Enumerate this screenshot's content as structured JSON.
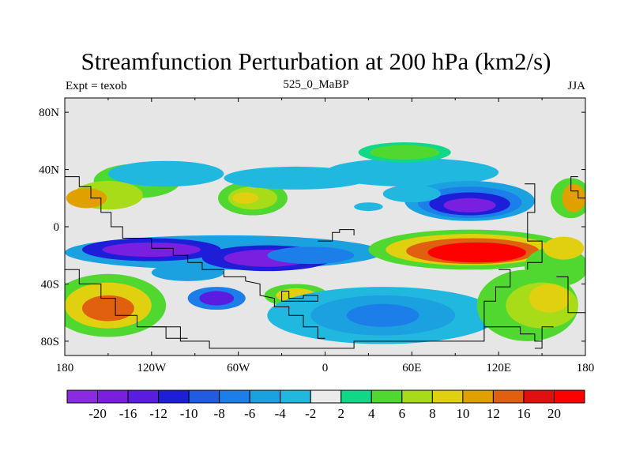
{
  "chart_data": {
    "type": "heatmap",
    "title": "Streamfunction Perturbation at 200 hPa (km2/s)",
    "subtitle_left": "Expt = texob",
    "subtitle_center": "525_0_MaBP",
    "subtitle_right": "JJA",
    "xlabel": "",
    "ylabel": "",
    "xlim": [
      -180,
      180
    ],
    "ylim": [
      -90,
      90
    ],
    "x_ticks": [
      {
        "value": -180,
        "label": "180"
      },
      {
        "value": -120,
        "label": "120W"
      },
      {
        "value": -60,
        "label": "60W"
      },
      {
        "value": 0,
        "label": "0"
      },
      {
        "value": 60,
        "label": "60E"
      },
      {
        "value": 120,
        "label": "120E"
      },
      {
        "value": 180,
        "label": "180"
      }
    ],
    "y_ticks": [
      {
        "value": 80,
        "label": "80N"
      },
      {
        "value": 40,
        "label": "40N"
      },
      {
        "value": 0,
        "label": "0"
      },
      {
        "value": -40,
        "label": "40S"
      },
      {
        "value": -80,
        "label": "80S"
      }
    ],
    "colorbar": {
      "levels": [
        "-20",
        "-16",
        "-12",
        "-10",
        "-8",
        "-6",
        "-4",
        "-2",
        "2",
        "4",
        "6",
        "8",
        "10",
        "12",
        "16",
        "20"
      ],
      "colors": [
        "#8a2be2",
        "#7a1fe0",
        "#5a1ce0",
        "#1e1ed8",
        "#1f5ce0",
        "#1c7ee8",
        "#1ba0e0",
        "#21b8e0",
        "#ebebeb",
        "#10d888",
        "#50d830",
        "#a8dc18",
        "#e0d010",
        "#e0a000",
        "#e06010",
        "#e01010",
        "#ff0000"
      ]
    },
    "features": [
      {
        "name": "equatorial-low-west",
        "lon": -120,
        "lat": -16,
        "value": -20
      },
      {
        "name": "equatorial-low-central",
        "lon": -40,
        "lat": -22,
        "value": -20
      },
      {
        "name": "south-low",
        "lon": -75,
        "lat": -50,
        "value": -16
      },
      {
        "name": "north-low-asia",
        "lon": 100,
        "lat": 15,
        "value": -16
      },
      {
        "name": "south-ocean-low",
        "lon": 40,
        "lat": -60,
        "value": -8
      },
      {
        "name": "high-asia",
        "lon": 105,
        "lat": -18,
        "value": 20
      },
      {
        "name": "high-south-pacific",
        "lon": -150,
        "lat": -55,
        "value": 12
      },
      {
        "name": "high-north-pacific",
        "lon": -160,
        "lat": 20,
        "value": 10
      },
      {
        "name": "high-north-atlantic",
        "lon": -50,
        "lat": 20,
        "value": 8
      },
      {
        "name": "high-east-pacific",
        "lon": 170,
        "lat": 20,
        "value": 10
      },
      {
        "name": "high-south-atlantic",
        "lon": -20,
        "lat": -48,
        "value": 8
      },
      {
        "name": "high-north-band",
        "lon": 50,
        "lat": 52,
        "value": 4
      }
    ]
  }
}
